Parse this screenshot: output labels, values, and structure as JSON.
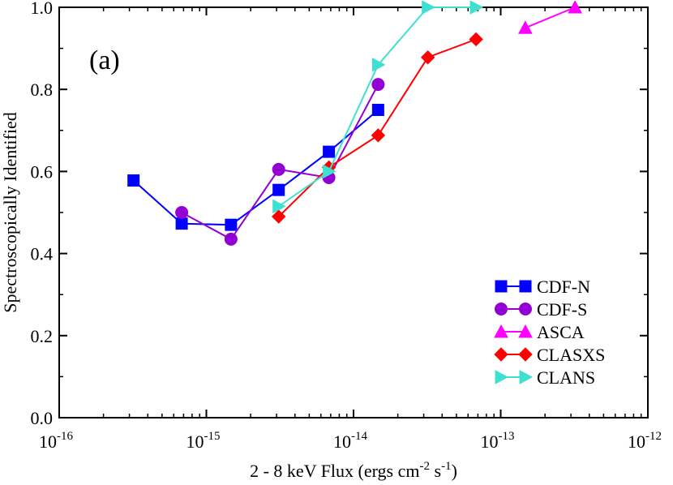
{
  "chart_data": {
    "type": "line",
    "panel_label": "(a)",
    "title": "",
    "xlabel": {
      "prefix": "2 - 8 keV Flux (ergs cm",
      "exp1": "-2",
      "middle": " s",
      "exp2": "-1",
      "suffix": ")"
    },
    "ylabel": "Spectroscopically Identified",
    "x_scale": "log",
    "xlim": [
      1e-16,
      1e-12
    ],
    "ylim": [
      0.0,
      1.0
    ],
    "x_ticks": [
      {
        "value": 1e-16,
        "base": "10",
        "exp": "-16"
      },
      {
        "value": 1e-15,
        "base": "10",
        "exp": "-15"
      },
      {
        "value": 1e-14,
        "base": "10",
        "exp": "-14"
      },
      {
        "value": 1e-13,
        "base": "10",
        "exp": "-13"
      },
      {
        "value": 1e-12,
        "base": "10",
        "exp": "-12"
      }
    ],
    "y_ticks": [
      "0.0",
      "0.2",
      "0.4",
      "0.6",
      "0.8",
      "1.0"
    ],
    "legend_position": "bottom-right",
    "series": [
      {
        "name": "CDF-N",
        "color": "#0000ff",
        "marker": "square",
        "x": [
          3.2e-16,
          6.8e-16,
          1.47e-15,
          3.1e-15,
          6.8e-15,
          1.47e-14
        ],
        "y": [
          0.578,
          0.473,
          0.47,
          0.555,
          0.648,
          0.75
        ]
      },
      {
        "name": "CDF-S",
        "color": "#9400d3",
        "marker": "circle",
        "x": [
          6.8e-16,
          1.47e-15,
          3.1e-15,
          6.8e-15,
          1.47e-14
        ],
        "y": [
          0.5,
          0.435,
          0.605,
          0.585,
          0.812
        ]
      },
      {
        "name": "ASCA",
        "color": "#ff00ff",
        "marker": "triangle-up",
        "x": [
          1.47e-13,
          3.2e-13
        ],
        "y": [
          0.95,
          1.0
        ]
      },
      {
        "name": "CLASXS",
        "color": "#ff0000",
        "marker": "diamond",
        "x": [
          3.1e-15,
          6.8e-15,
          1.47e-14,
          3.2e-14,
          6.8e-14
        ],
        "y": [
          0.49,
          0.61,
          0.688,
          0.878,
          0.922
        ]
      },
      {
        "name": "CLANS",
        "color": "#40e0d0",
        "marker": "triangle-right",
        "x": [
          3.1e-15,
          6.8e-15,
          1.47e-14,
          3.2e-14,
          6.8e-14
        ],
        "y": [
          0.515,
          0.6,
          0.86,
          1.0,
          1.0
        ]
      }
    ]
  }
}
